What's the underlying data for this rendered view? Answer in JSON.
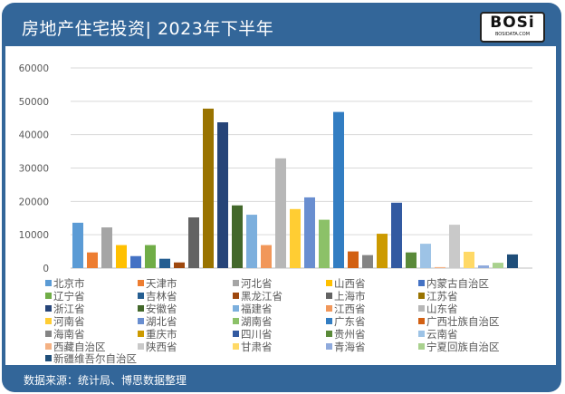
{
  "header": {
    "title": "房地产住宅投资| 2023年下半年"
  },
  "logo": {
    "text": "BOSi",
    "sub": "BOSIDATA.COM"
  },
  "footer": {
    "source": "数据来源：统计局、博思数据整理"
  },
  "colors": {
    "header": "#336699"
  },
  "chart_data": {
    "type": "bar",
    "title": "",
    "xlabel": "",
    "ylabel": "",
    "ylim": [
      0,
      60000
    ],
    "yticks": [
      0,
      10000,
      20000,
      30000,
      40000,
      50000,
      60000
    ],
    "grid": true,
    "legend_position": "bottom",
    "series": [
      {
        "name": "北京市",
        "value": 13600,
        "color": "#5b9bd5"
      },
      {
        "name": "天津市",
        "value": 4700,
        "color": "#ed7d31"
      },
      {
        "name": "河北省",
        "value": 12200,
        "color": "#a5a5a5"
      },
      {
        "name": "山西省",
        "value": 6900,
        "color": "#ffc000"
      },
      {
        "name": "内蒙古自治区",
        "value": 3600,
        "color": "#4472c4"
      },
      {
        "name": "辽宁省",
        "value": 6900,
        "color": "#70ad47"
      },
      {
        "name": "吉林省",
        "value": 2800,
        "color": "#255e91"
      },
      {
        "name": "黑龙江省",
        "value": 1700,
        "color": "#9e480e"
      },
      {
        "name": "上海市",
        "value": 15200,
        "color": "#636363"
      },
      {
        "name": "江苏省",
        "value": 47800,
        "color": "#997300"
      },
      {
        "name": "浙江省",
        "value": 43700,
        "color": "#264478"
      },
      {
        "name": "安徽省",
        "value": 18800,
        "color": "#43682b"
      },
      {
        "name": "福建省",
        "value": 16000,
        "color": "#7cafdd"
      },
      {
        "name": "江西省",
        "value": 6900,
        "color": "#f1975a"
      },
      {
        "name": "山东省",
        "value": 32900,
        "color": "#b7b7b7"
      },
      {
        "name": "河南省",
        "value": 17700,
        "color": "#ffcd33"
      },
      {
        "name": "湖北省",
        "value": 21200,
        "color": "#698ed0"
      },
      {
        "name": "湖南省",
        "value": 14500,
        "color": "#8cc168"
      },
      {
        "name": "广东省",
        "value": 46800,
        "color": "#327dc2"
      },
      {
        "name": "广西壮族自治区",
        "value": 5000,
        "color": "#d26012"
      },
      {
        "name": "海南省",
        "value": 3900,
        "color": "#848484"
      },
      {
        "name": "重庆市",
        "value": 10300,
        "color": "#cc9a00"
      },
      {
        "name": "四川省",
        "value": 19600,
        "color": "#335aa1"
      },
      {
        "name": "贵州省",
        "value": 4700,
        "color": "#5a8a39"
      },
      {
        "name": "云南省",
        "value": 7300,
        "color": "#9dc3e6"
      },
      {
        "name": "西藏自治区",
        "value": 300,
        "color": "#f4b183"
      },
      {
        "name": "陕西省",
        "value": 13000,
        "color": "#c9c9c9"
      },
      {
        "name": "甘肃省",
        "value": 4900,
        "color": "#ffd966"
      },
      {
        "name": "青海省",
        "value": 800,
        "color": "#8faadc"
      },
      {
        "name": "宁夏回族自治区",
        "value": 1600,
        "color": "#a9d18e"
      },
      {
        "name": "新疆维吾尔自治区",
        "value": 4100,
        "color": "#1f4e79"
      }
    ]
  }
}
